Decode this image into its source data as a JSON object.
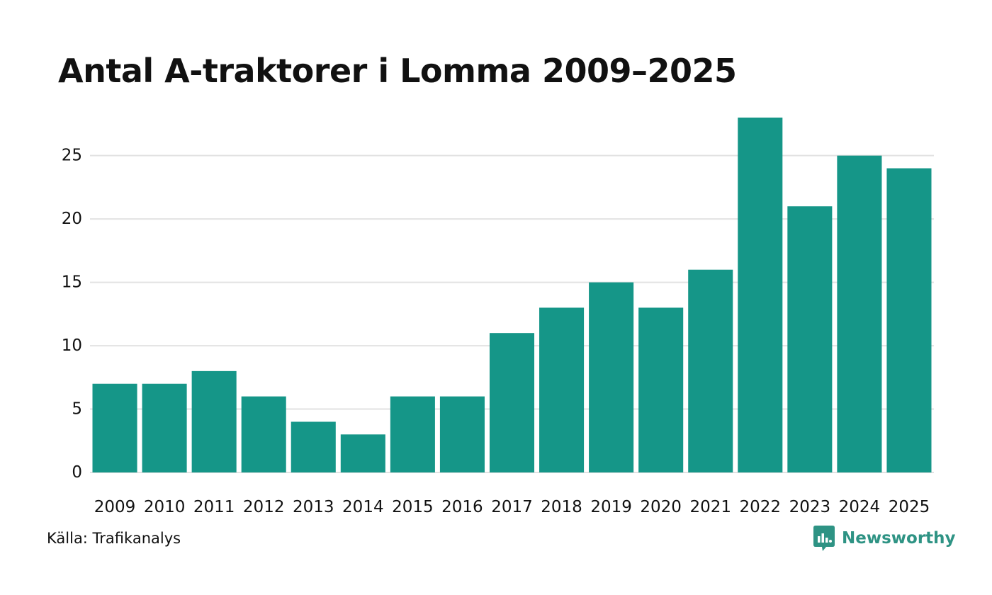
{
  "title": "Antal A-traktorer i Lomma 2009–2025",
  "source": "Källa: Trafikanalys",
  "brand": {
    "name": "Newsworthy",
    "icon": "newsworthy-logo-icon",
    "color": "#2e9384"
  },
  "colors": {
    "bar": "#159688",
    "grid": "#e2e2e2",
    "text": "#111111"
  },
  "chart_data": {
    "type": "bar",
    "title": "Antal A-traktorer i Lomma 2009–2025",
    "xlabel": "",
    "ylabel": "",
    "categories": [
      "2009",
      "2010",
      "2011",
      "2012",
      "2013",
      "2014",
      "2015",
      "2016",
      "2017",
      "2018",
      "2019",
      "2020",
      "2021",
      "2022",
      "2023",
      "2024",
      "2025"
    ],
    "values": [
      7,
      7,
      8,
      6,
      4,
      3,
      6,
      6,
      11,
      13,
      15,
      13,
      16,
      28,
      21,
      25,
      24
    ],
    "yticks": [
      0,
      5,
      10,
      15,
      20,
      25
    ],
    "ylim": [
      0,
      28
    ],
    "grid": true,
    "legend": "none"
  }
}
